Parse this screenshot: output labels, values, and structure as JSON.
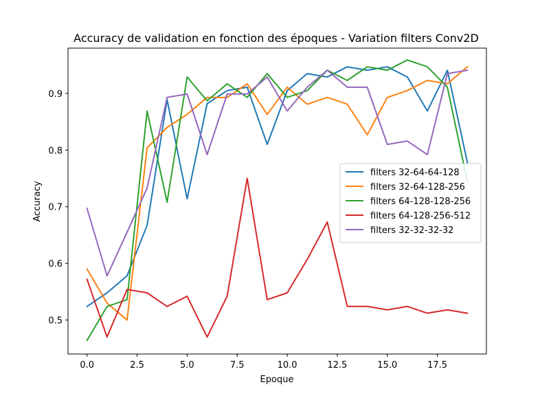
{
  "chart_data": {
    "type": "line",
    "title": "Accuracy de validation en fonction des époques - Variation filters Conv2D",
    "xlabel": "Epoque",
    "ylabel": "Accuracy",
    "xlim": [
      -0.95,
      19.95
    ],
    "ylim": [
      0.44,
      0.98
    ],
    "xticks": [
      0.0,
      2.5,
      5.0,
      7.5,
      10.0,
      12.5,
      15.0,
      17.5
    ],
    "xtick_labels": [
      "0.0",
      "2.5",
      "5.0",
      "7.5",
      "10.0",
      "12.5",
      "15.0",
      "17.5"
    ],
    "yticks": [
      0.5,
      0.6,
      0.7,
      0.8,
      0.9
    ],
    "ytick_labels": [
      "0.5",
      "0.6",
      "0.7",
      "0.8",
      "0.9"
    ],
    "grid": false,
    "legend_position": "center-right",
    "x": [
      0,
      1,
      2,
      3,
      4,
      5,
      6,
      7,
      8,
      9,
      10,
      11,
      12,
      13,
      14,
      15,
      16,
      17,
      18,
      19
    ],
    "series": [
      {
        "name": "filters 32-64-64-128",
        "color": "#1f77b4",
        "values": [
          0.524,
          0.548,
          0.578,
          0.667,
          0.889,
          0.714,
          0.882,
          0.905,
          0.911,
          0.81,
          0.905,
          0.935,
          0.929,
          0.947,
          0.941,
          0.947,
          0.929,
          0.869,
          0.941,
          0.778
        ]
      },
      {
        "name": "filters 32-64-128-256",
        "color": "#ff7f0e",
        "values": [
          0.59,
          0.53,
          0.5,
          0.804,
          0.84,
          0.863,
          0.893,
          0.893,
          0.917,
          0.863,
          0.911,
          0.881,
          0.893,
          0.881,
          0.827,
          0.893,
          0.905,
          0.923,
          0.917,
          0.947
        ]
      },
      {
        "name": "filters 64-128-128-256",
        "color": "#2ca02c",
        "values": [
          0.464,
          0.524,
          0.536,
          0.869,
          0.708,
          0.929,
          0.887,
          0.917,
          0.893,
          0.935,
          0.893,
          0.905,
          0.941,
          0.923,
          0.947,
          0.941,
          0.959,
          0.947,
          0.911,
          0.744
        ]
      },
      {
        "name": "filters 64-128-256-512",
        "color": "#d62728",
        "values": [
          0.572,
          0.47,
          0.554,
          0.548,
          0.524,
          0.542,
          0.47,
          0.542,
          0.75,
          0.536,
          0.548,
          0.607,
          0.673,
          0.524,
          0.524,
          0.518,
          0.524,
          0.512,
          0.518,
          0.512
        ]
      },
      {
        "name": "filters 32-32-32-32",
        "color": "#9467bd",
        "values": [
          0.697,
          0.578,
          0.655,
          0.733,
          0.893,
          0.899,
          0.792,
          0.899,
          0.899,
          0.929,
          0.869,
          0.911,
          0.941,
          0.911,
          0.911,
          0.81,
          0.816,
          0.792,
          0.935,
          0.941
        ]
      }
    ]
  }
}
